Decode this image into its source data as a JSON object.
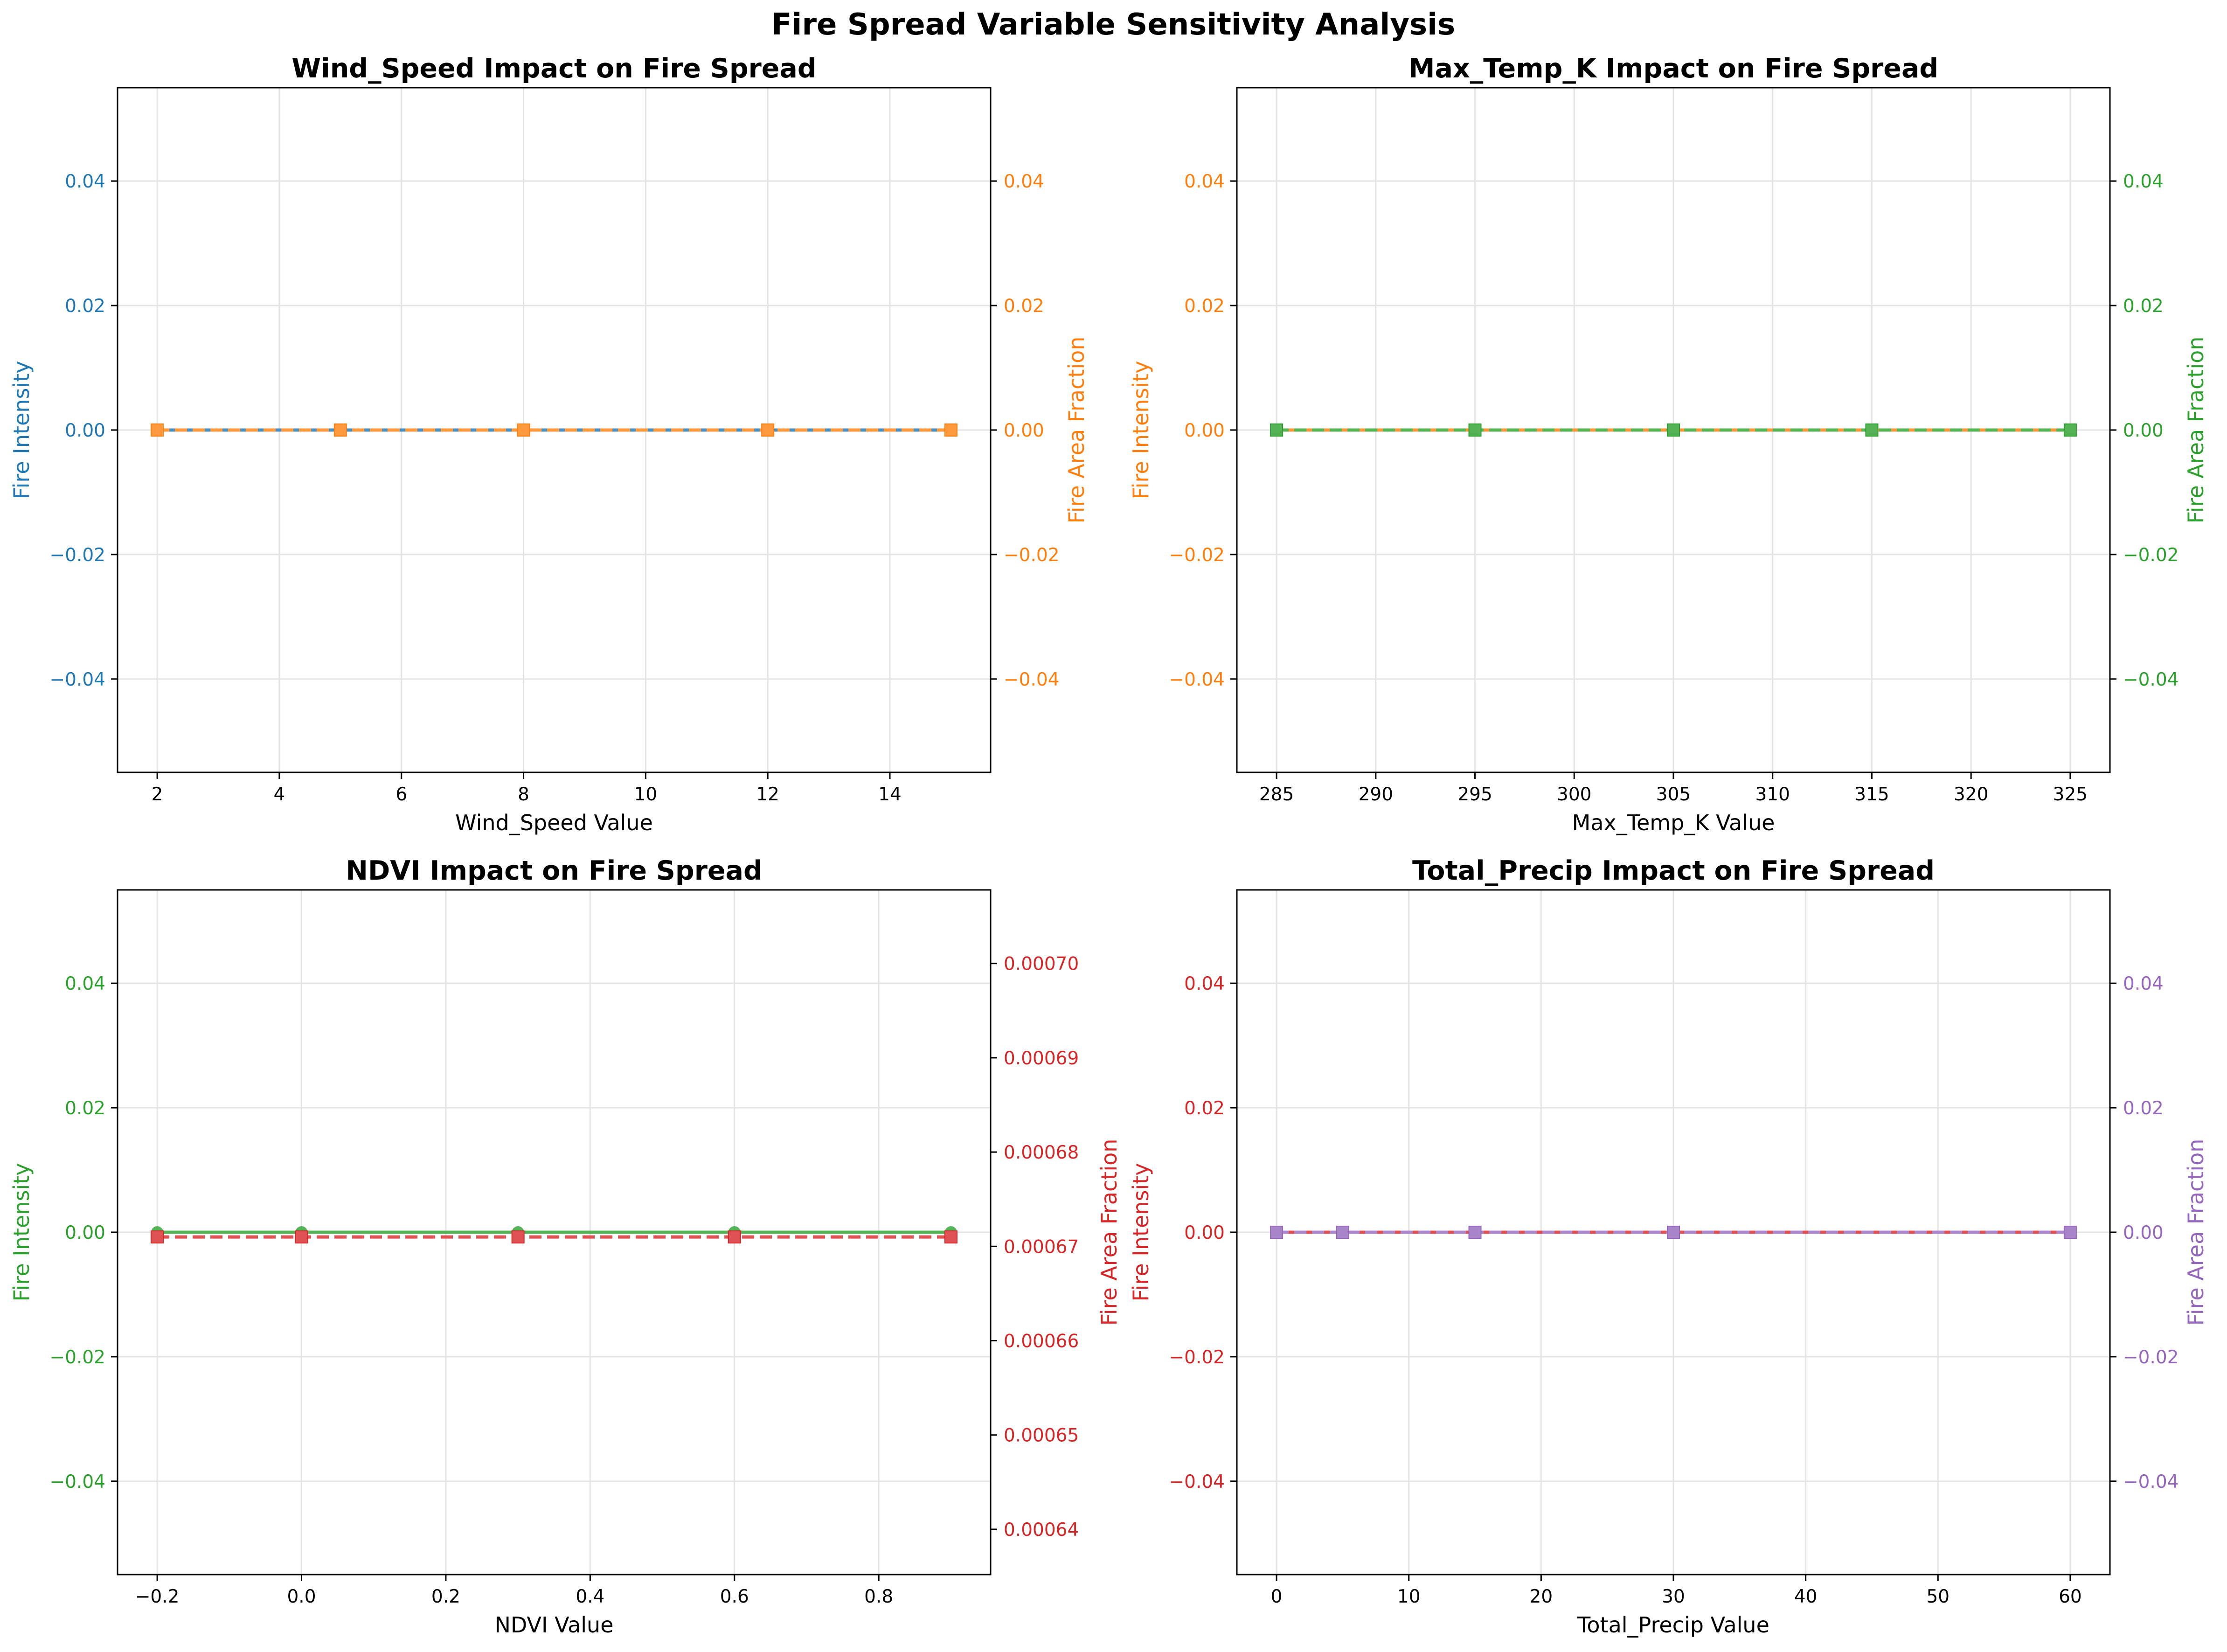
{
  "chart_data": {
    "title": "Fire Spread Variable Sensitivity Analysis",
    "panels": [
      {
        "type": "line",
        "title": "Wind_Speed Impact on Fire Spread",
        "xlabel": "Wind_Speed Value",
        "ylabel_left": "Fire Intensity",
        "ylabel_right": "Fire Area Fraction",
        "left_color": "#1f77b4",
        "right_color": "#ff7f0e",
        "x": [
          2,
          5,
          8,
          12,
          15
        ],
        "intensity": [
          0,
          0,
          0,
          0,
          0
        ],
        "area_fraction": [
          0,
          0,
          0,
          0,
          0
        ],
        "xlim": [
          1.35,
          15.65
        ],
        "xticks": [
          2,
          4,
          6,
          8,
          10,
          12,
          14
        ],
        "xtick_labels": [
          "2",
          "4",
          "6",
          "8",
          "10",
          "12",
          "14"
        ],
        "ylim_left": [
          -0.055,
          0.055
        ],
        "yticks_left": [
          -0.04,
          -0.02,
          0,
          0.02,
          0.04
        ],
        "ytick_labels_left": [
          "−0.04",
          "−0.02",
          "0.00",
          "0.02",
          "0.04"
        ],
        "ylim_right": [
          -0.055,
          0.055
        ],
        "yticks_right": [
          -0.04,
          -0.02,
          0,
          0.02,
          0.04
        ],
        "ytick_labels_right": [
          "−0.04",
          "−0.02",
          "0.00",
          "0.02",
          "0.04"
        ],
        "grid": true
      },
      {
        "type": "line",
        "title": "Max_Temp_K Impact on Fire Spread",
        "xlabel": "Max_Temp_K Value",
        "ylabel_left": "Fire Intensity",
        "ylabel_right": "Fire Area Fraction",
        "left_color": "#ff7f0e",
        "right_color": "#2ca02c",
        "x": [
          285,
          295,
          305,
          315,
          325
        ],
        "intensity": [
          0,
          0,
          0,
          0,
          0
        ],
        "area_fraction": [
          0,
          0,
          0,
          0,
          0
        ],
        "xlim": [
          283,
          327
        ],
        "xticks": [
          285,
          290,
          295,
          300,
          305,
          310,
          315,
          320,
          325
        ],
        "xtick_labels": [
          "285",
          "290",
          "295",
          "300",
          "305",
          "310",
          "315",
          "320",
          "325"
        ],
        "ylim_left": [
          -0.055,
          0.055
        ],
        "yticks_left": [
          -0.04,
          -0.02,
          0,
          0.02,
          0.04
        ],
        "ytick_labels_left": [
          "−0.04",
          "−0.02",
          "0.00",
          "0.02",
          "0.04"
        ],
        "ylim_right": [
          -0.055,
          0.055
        ],
        "yticks_right": [
          -0.04,
          -0.02,
          0,
          0.02,
          0.04
        ],
        "ytick_labels_right": [
          "−0.04",
          "−0.02",
          "0.00",
          "0.02",
          "0.04"
        ],
        "grid": true
      },
      {
        "type": "line",
        "title": "NDVI Impact on Fire Spread",
        "xlabel": "NDVI Value",
        "ylabel_left": "Fire Intensity",
        "ylabel_right": "Fire Area Fraction",
        "left_color": "#2ca02c",
        "right_color": "#d62728",
        "x": [
          -0.2,
          0,
          0.3,
          0.6,
          0.9
        ],
        "intensity": [
          0,
          0,
          0,
          0,
          0
        ],
        "area_fraction": [
          0.000671,
          0.000671,
          0.000671,
          0.000671,
          0.000671
        ],
        "xlim": [
          -0.255,
          0.955
        ],
        "xticks": [
          -0.2,
          0,
          0.2,
          0.4,
          0.6,
          0.8
        ],
        "xtick_labels": [
          "−0.2",
          "0.0",
          "0.2",
          "0.4",
          "0.6",
          "0.8"
        ],
        "ylim_left": [
          -0.055,
          0.055
        ],
        "yticks_left": [
          -0.04,
          -0.02,
          0,
          0.02,
          0.04
        ],
        "ytick_labels_left": [
          "−0.04",
          "−0.02",
          "0.00",
          "0.02",
          "0.04"
        ],
        "ylim_right": [
          0.0006352,
          0.0007078
        ],
        "yticks_right": [
          0.00064,
          0.00065,
          0.00066,
          0.00067,
          0.00068,
          0.00069,
          0.0007
        ],
        "ytick_labels_right": [
          "0.00064",
          "0.00065",
          "0.00066",
          "0.00067",
          "0.00068",
          "0.00069",
          "0.00070"
        ],
        "grid": true
      },
      {
        "type": "line",
        "title": "Total_Precip Impact on Fire Spread",
        "xlabel": "Total_Precip Value",
        "ylabel_left": "Fire Intensity",
        "ylabel_right": "Fire Area Fraction",
        "left_color": "#d62728",
        "right_color": "#9467bd",
        "x": [
          0,
          5,
          15,
          30,
          60
        ],
        "intensity": [
          0,
          0,
          0,
          0,
          0
        ],
        "area_fraction": [
          0,
          0,
          0,
          0,
          0
        ],
        "xlim": [
          -3,
          63
        ],
        "xticks": [
          0,
          10,
          20,
          30,
          40,
          50,
          60
        ],
        "xtick_labels": [
          "0",
          "10",
          "20",
          "30",
          "40",
          "50",
          "60"
        ],
        "ylim_left": [
          -0.055,
          0.055
        ],
        "yticks_left": [
          -0.04,
          -0.02,
          0,
          0.02,
          0.04
        ],
        "ytick_labels_left": [
          "−0.04",
          "−0.02",
          "0.00",
          "0.02",
          "0.04"
        ],
        "ylim_right": [
          -0.055,
          0.055
        ],
        "yticks_right": [
          -0.04,
          -0.02,
          0,
          0.02,
          0.04
        ],
        "ytick_labels_right": [
          "−0.04",
          "−0.02",
          "0.00",
          "0.02",
          "0.04"
        ],
        "grid": true
      }
    ]
  }
}
